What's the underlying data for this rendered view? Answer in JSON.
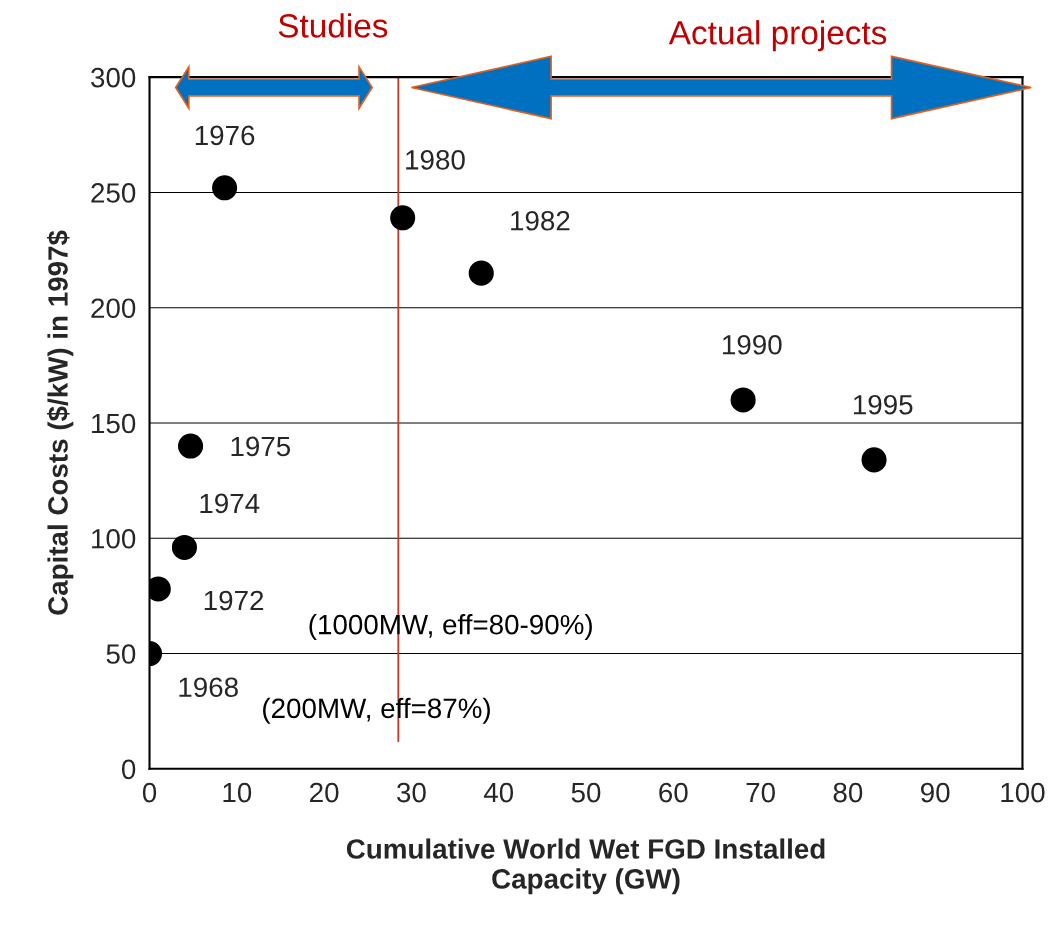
{
  "chart_data": {
    "type": "scatter",
    "xlabel": "Cumulative World Wet FGD Installed\nCapacity (GW)",
    "ylabel": "Capital Costs ($/kW) in 1997$",
    "x": [
      0,
      1,
      4,
      4.7,
      8.6,
      29,
      38,
      68,
      83
    ],
    "values": [
      50,
      78,
      96,
      140,
      252,
      239,
      215,
      160,
      134
    ],
    "color": "#000000",
    "marker": "circle",
    "xlim": [
      0,
      100
    ],
    "xticks": [
      0,
      10,
      20,
      30,
      40,
      50,
      60,
      70,
      80,
      90,
      100
    ],
    "ylim": [
      0,
      300
    ],
    "yticks": [
      0,
      50,
      100,
      150,
      200,
      250,
      300
    ],
    "grid": "y",
    "ref_lines": [
      {
        "axis": "x",
        "value": 28.5,
        "color": "#c0392b",
        "line_style": "solid"
      }
    ],
    "annotations": [
      {
        "text": "1968",
        "x": 0,
        "y": 50
      },
      {
        "text": "1972",
        "x": 1,
        "y": 78
      },
      {
        "text": "1974",
        "x": 4,
        "y": 96
      },
      {
        "text": "1975",
        "x": 4.7,
        "y": 140
      },
      {
        "text": "1976",
        "x": 8.6,
        "y": 252
      },
      {
        "text": "1980",
        "x": 29,
        "y": 239
      },
      {
        "text": "1982",
        "x": 38,
        "y": 215
      },
      {
        "text": "1990",
        "x": 68,
        "y": 160
      },
      {
        "text": "1995",
        "x": 83,
        "y": 134
      },
      "(1000MW, eff=80-90%)",
      "(200MW, eff=87%)",
      "Studies",
      "Actual projects"
    ]
  }
}
